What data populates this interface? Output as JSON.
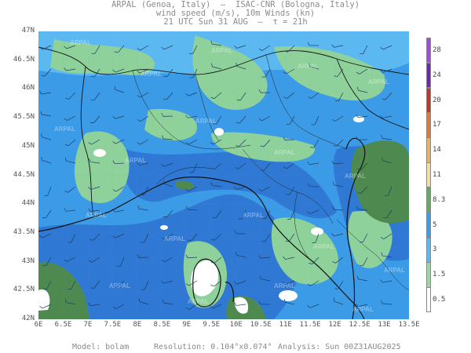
{
  "header": {
    "line1": "ARPAL (Genoa, Italy)  —  ISAC-CNR (Bologna, Italy)",
    "line2": "wind speed (m/s), 10m Winds (kn)",
    "line3": "21 UTC Sun 31 AUG  —  τ = 21h"
  },
  "map": {
    "y_axis": {
      "labels": [
        "47N",
        "46.5N",
        "46N",
        "45.5N",
        "45N",
        "44.5N",
        "44N",
        "43.5N",
        "43N",
        "42.5N",
        "42N"
      ]
    },
    "x_axis": {
      "labels": [
        "6E",
        "6.5E",
        "7E",
        "7.5E",
        "8E",
        "8.5E",
        "9E",
        "9.5E",
        "10E",
        "10.5E",
        "11E",
        "11.5E",
        "12E",
        "12.5E",
        "13E",
        "13.5E"
      ]
    },
    "lat_range": [
      42,
      47
    ],
    "lon_range": [
      6,
      13.5
    ],
    "watermark": "ARPAL",
    "colors": {
      "deep_blue": "#2f79d4",
      "mid_blue": "#3c9be6",
      "light_blue": "#5bb8f0",
      "green_light": "#8fd19a",
      "green_dark": "#4e8a4f",
      "white": "#ffffff"
    }
  },
  "colorbar": {
    "labels": [
      "28",
      "24",
      "20",
      "17",
      "14",
      "11",
      "8.3",
      "5",
      "3",
      "1.5",
      "0.5"
    ],
    "colors": [
      "#9b4ed8",
      "#6a2aa6",
      "#b73a2f",
      "#d97b3a",
      "#e3b36c",
      "#f2dfa6",
      "#67a864",
      "#3c9be6",
      "#5bb8f0",
      "#9ed6a2",
      "#ffffff"
    ]
  },
  "footer": {
    "model": "Model: bolam",
    "resolution": "Resolution: 0.104°x0.074°",
    "analysis": "Analysis: Sun 00Z31AUG2025"
  }
}
